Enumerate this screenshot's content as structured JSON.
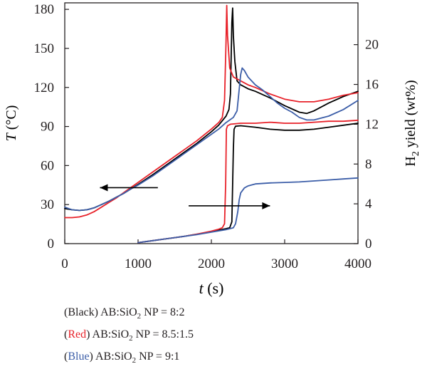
{
  "chart_data": {
    "type": "line",
    "xlabel": "t (s)",
    "ylabel_left": "T (°C)",
    "ylabel_right": "H2 yield (wt%)",
    "xlim": [
      0,
      4000
    ],
    "ylim_left": [
      0,
      185
    ],
    "ylim_right": [
      0,
      24.2
    ],
    "x_ticks": [
      0,
      1000,
      2000,
      3000,
      4000
    ],
    "y_ticks_left": [
      0,
      30,
      60,
      90,
      120,
      150,
      180
    ],
    "y_ticks_right": [
      0,
      4,
      8,
      12,
      16,
      20
    ],
    "grid": false,
    "series": [
      {
        "name": "Black",
        "axis": "left",
        "color": "#000000",
        "x": [
          0,
          100,
          200,
          300,
          400,
          500,
          600,
          700,
          800,
          900,
          1000,
          1200,
          1400,
          1600,
          1800,
          2000,
          2100,
          2200,
          2240,
          2260,
          2280,
          2290,
          2300,
          2320,
          2350,
          2400,
          2500,
          2600,
          2800,
          3000,
          3200,
          3300,
          3400,
          3600,
          3800,
          4000
        ],
        "y": [
          27,
          26,
          25.5,
          26,
          27.5,
          30,
          32.5,
          35.5,
          38.5,
          42,
          45.5,
          53,
          61,
          69,
          77,
          86,
          91,
          98,
          103,
          115,
          170,
          181,
          160,
          140,
          125,
          122,
          119,
          117,
          112,
          106,
          101,
          100,
          102,
          108,
          113,
          117
        ]
      },
      {
        "name": "Red",
        "axis": "left",
        "color": "#e8222a",
        "x": [
          0,
          100,
          200,
          300,
          400,
          500,
          600,
          700,
          800,
          900,
          1000,
          1200,
          1400,
          1600,
          1800,
          2000,
          2100,
          2150,
          2180,
          2200,
          2210,
          2220,
          2250,
          2300,
          2400,
          2500,
          2600,
          2800,
          3000,
          3200,
          3400,
          3600,
          3800,
          4000
        ],
        "y": [
          20,
          20,
          20.5,
          22,
          24.5,
          28,
          31.5,
          35,
          39,
          43,
          47,
          55,
          63,
          71,
          79,
          88,
          93,
          97,
          110,
          155,
          183,
          160,
          135,
          128,
          125,
          122,
          120,
          115,
          111,
          109,
          109,
          111,
          114,
          116
        ]
      },
      {
        "name": "Blue",
        "axis": "left",
        "color": "#3c5ea8",
        "x": [
          0,
          100,
          200,
          300,
          400,
          500,
          600,
          700,
          800,
          900,
          1000,
          1200,
          1400,
          1600,
          1800,
          2000,
          2100,
          2200,
          2300,
          2350,
          2400,
          2420,
          2450,
          2500,
          2600,
          2700,
          2800,
          2900,
          3000,
          3100,
          3200,
          3300,
          3400,
          3600,
          3800,
          4000
        ],
        "y": [
          28,
          26,
          25.5,
          26,
          27.5,
          30,
          32.5,
          35.5,
          38.5,
          42,
          45,
          52,
          60,
          68,
          76,
          84,
          88,
          93,
          97,
          102,
          130,
          135,
          133,
          128,
          122,
          118,
          113,
          108,
          104,
          101,
          97,
          95,
          95,
          98,
          103,
          110
        ]
      },
      {
        "name": "Black",
        "axis": "right",
        "color": "#000000",
        "x": [
          1000,
          1200,
          1400,
          1600,
          1800,
          2000,
          2100,
          2200,
          2250,
          2280,
          2300,
          2310,
          2330,
          2400,
          2600,
          2800,
          3000,
          3200,
          3400,
          3600,
          3800,
          4000
        ],
        "y": [
          0.1,
          0.3,
          0.5,
          0.7,
          0.95,
          1.2,
          1.35,
          1.5,
          1.6,
          2.2,
          9.5,
          11.5,
          11.8,
          11.85,
          11.7,
          11.5,
          11.4,
          11.4,
          11.5,
          11.7,
          11.9,
          12.1
        ]
      },
      {
        "name": "Red",
        "axis": "right",
        "color": "#e8222a",
        "x": [
          1000,
          1200,
          1400,
          1600,
          1800,
          2000,
          2100,
          2150,
          2180,
          2195,
          2205,
          2220,
          2260,
          2400,
          2600,
          2800,
          3000,
          3200,
          3400,
          3600,
          3800,
          4000
        ],
        "y": [
          0.1,
          0.3,
          0.5,
          0.7,
          0.95,
          1.25,
          1.45,
          1.6,
          2.0,
          6.0,
          11.5,
          11.85,
          12.0,
          12.1,
          12.1,
          12.2,
          12.1,
          12.1,
          12.2,
          12.3,
          12.3,
          12.4
        ]
      },
      {
        "name": "Blue",
        "axis": "right",
        "color": "#3c5ea8",
        "x": [
          1000,
          1200,
          1400,
          1600,
          1800,
          2000,
          2200,
          2300,
          2330,
          2360,
          2380,
          2400,
          2450,
          2500,
          2600,
          2800,
          3000,
          3200,
          3400,
          3600,
          3800,
          4000
        ],
        "y": [
          0.1,
          0.3,
          0.5,
          0.7,
          0.9,
          1.15,
          1.4,
          1.6,
          2.0,
          3.2,
          4.4,
          5.1,
          5.6,
          5.8,
          6.0,
          6.1,
          6.15,
          6.2,
          6.3,
          6.4,
          6.5,
          6.6
        ]
      }
    ],
    "arrows": [
      {
        "axis": "left",
        "from": [
          1270,
          43
        ],
        "to": [
          480,
          43
        ]
      },
      {
        "axis": "right",
        "from": [
          1690,
          3.8
        ],
        "to": [
          2800,
          3.8
        ]
      }
    ],
    "legend": [
      {
        "color_name": "Black",
        "color": "#231f20",
        "text": "AB:SiO",
        "sub": "2",
        "text2": " NP = 8:2"
      },
      {
        "color_name": "Red",
        "color": "#e8222a",
        "text": "AB:SiO",
        "sub": "2",
        "text2": " NP = 8.5:1.5"
      },
      {
        "color_name": "Blue",
        "color": "#3c5ea8",
        "text": "AB:SiO",
        "sub": "2",
        "text2": " NP = 9:1"
      }
    ]
  }
}
